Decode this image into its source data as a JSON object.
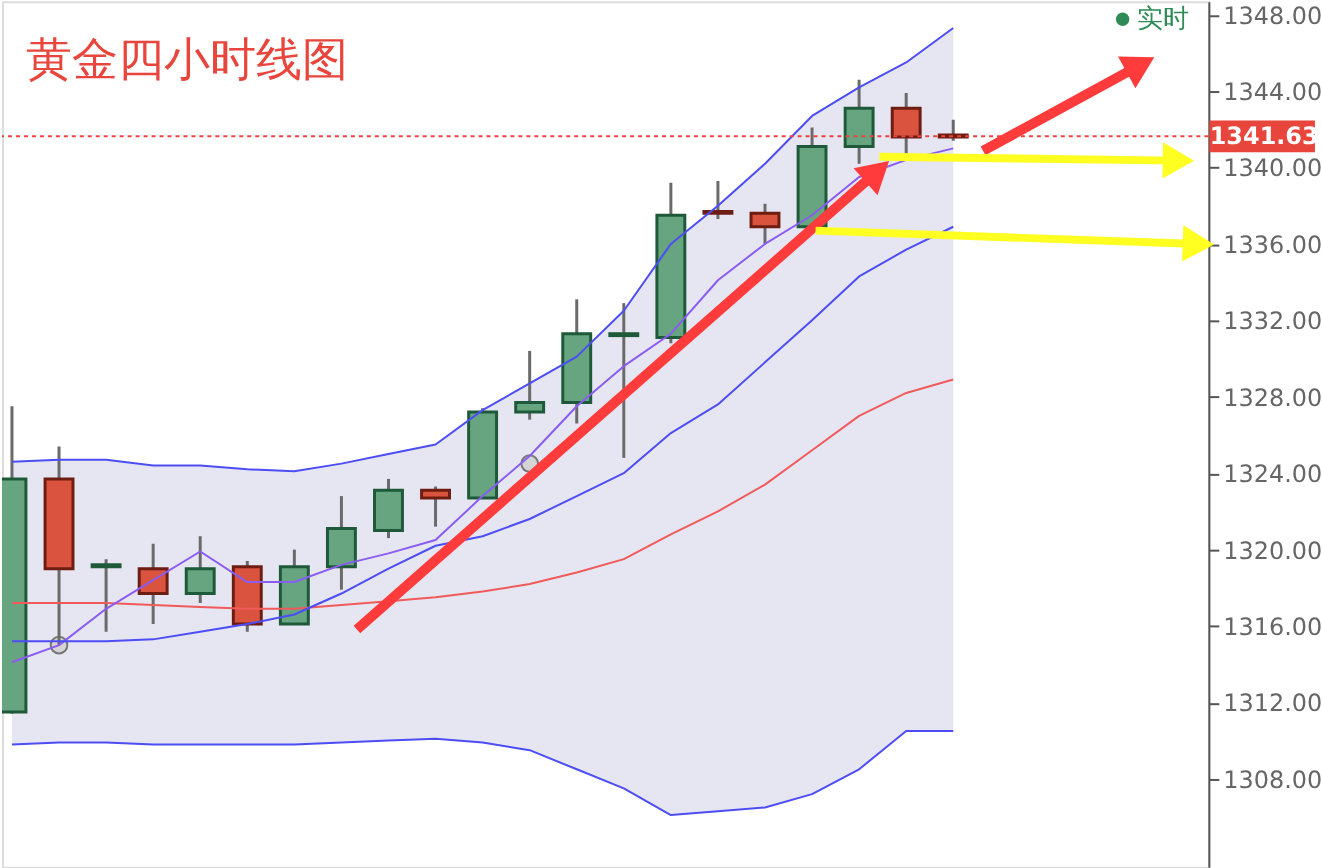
{
  "chart_data": {
    "type": "candlestick",
    "title": "黄金四小时线图",
    "categories": [
      null,
      null,
      null,
      null,
      null,
      null,
      null,
      null,
      null,
      null,
      null,
      null,
      null,
      null,
      null,
      null,
      null,
      null,
      null,
      null,
      null
    ],
    "ohlc": [
      [
        1311.5,
        1327.5,
        1311.4,
        1323.7
      ],
      [
        1323.7,
        1325.4,
        1315.0,
        1319.0
      ],
      [
        1319.1,
        1319.5,
        1315.7,
        1319.2
      ],
      [
        1319.0,
        1320.3,
        1316.1,
        1317.7
      ],
      [
        1317.7,
        1320.7,
        1317.2,
        1319.0
      ],
      [
        1319.1,
        1319.4,
        1315.7,
        1316.1
      ],
      [
        1316.1,
        1320.0,
        1316.1,
        1319.1
      ],
      [
        1319.1,
        1322.8,
        1317.9,
        1321.1
      ],
      [
        1321.0,
        1323.7,
        1320.6,
        1323.1
      ],
      [
        1323.1,
        1323.3,
        1321.2,
        1322.7
      ],
      [
        1322.7,
        1327.4,
        1322.7,
        1327.2
      ],
      [
        1327.2,
        1330.4,
        1326.8,
        1327.7
      ],
      [
        1327.7,
        1333.1,
        1326.6,
        1331.3
      ],
      [
        1331.2,
        1332.9,
        1324.8,
        1331.3
      ],
      [
        1331.1,
        1339.2,
        1330.8,
        1337.5
      ],
      [
        1337.7,
        1339.3,
        1337.3,
        1337.6
      ],
      [
        1337.6,
        1338.1,
        1336.0,
        1336.9
      ],
      [
        1336.9,
        1342.1,
        1336.9,
        1341.1
      ],
      [
        1341.1,
        1344.6,
        1340.2,
        1343.1
      ],
      [
        1343.1,
        1343.9,
        1340.6,
        1341.6
      ],
      [
        1341.7,
        1342.5,
        1341.4,
        1341.6
      ]
    ],
    "series": [
      {
        "type": "line",
        "color": "#f05a5a",
        "values": [
          1317.2,
          1317.2,
          1317.2,
          1317.1,
          1317.0,
          1316.9,
          1316.9,
          1317.1,
          1317.3,
          1317.5,
          1317.8,
          1318.2,
          1318.8,
          1319.5,
          1320.8,
          1322.0,
          1323.4,
          1325.2,
          1327.0,
          1328.2,
          1328.9
        ],
        "lower": [
          1309.8,
          1309.9,
          1309.9,
          1309.8,
          1309.8,
          1309.8,
          1309.8,
          1309.9,
          1310.0,
          1310.1,
          1309.9,
          1309.5,
          1308.5,
          1307.5,
          1306.1,
          1306.3,
          1306.5,
          1307.2,
          1308.5,
          1310.5,
          1310.5
        ],
        "upper": [
          1324.6,
          1324.7,
          1324.7,
          1324.4,
          1324.4,
          1324.2,
          1324.1,
          1324.5,
          1325.0,
          1325.5,
          1327.3,
          1328.7,
          1330.1,
          1332.5,
          1336.0,
          1338.0,
          1340.2,
          1342.7,
          1344.2,
          1345.5,
          1347.3
        ]
      },
      {
        "type": "line",
        "color": "#4d4df5",
        "values": [
          1309.8,
          1309.9,
          1309.9,
          1309.8,
          1309.8,
          1309.8,
          1309.8,
          1309.9,
          1310.0,
          1310.1,
          1309.9,
          1309.5,
          1308.5,
          1307.5,
          1306.1,
          1306.3,
          1306.5,
          1307.2,
          1308.5,
          1310.5,
          1310.5
        ]
      },
      {
        "type": "line",
        "color": "#4d4df5",
        "values": [
          1324.6,
          1324.7,
          1324.7,
          1324.4,
          1324.4,
          1324.2,
          1324.1,
          1324.5,
          1325.0,
          1325.5,
          1327.3,
          1328.7,
          1330.1,
          1332.5,
          1336.0,
          1338.0,
          1340.2,
          1342.7,
          1344.2,
          1345.5,
          1347.3
        ]
      },
      {
        "type": "line",
        "color": "#8a5cf0",
        "values": [
          1314.1,
          1315.0,
          1316.9,
          1318.4,
          1319.9,
          1318.3,
          1318.3,
          1319.2,
          1319.8,
          1320.5,
          1322.8,
          1324.9,
          1327.5,
          1329.6,
          1331.3,
          1334.1,
          1336.0,
          1337.5,
          1339.5,
          1340.4,
          1341.0
        ]
      },
      {
        "type": "line",
        "color": "#4d4df5",
        "values": [
          1315.2,
          1315.2,
          1315.2,
          1315.3,
          1315.7,
          1316.1,
          1316.6,
          1317.7,
          1319.0,
          1320.2,
          1320.7,
          1321.6,
          1322.8,
          1324.0,
          1326.1,
          1327.6,
          1329.8,
          1332.0,
          1334.3,
          1335.7,
          1336.9
        ]
      },
      {
        "type": "scatter",
        "color": "#d4d4d4",
        "marker": "circle",
        "values": [
          null,
          1315.0,
          null,
          null,
          null,
          null,
          null,
          null,
          null,
          null,
          null,
          1324.5,
          null,
          null,
          null,
          null,
          null,
          null,
          null,
          null,
          null
        ]
      }
    ],
    "ylim": [
      1303.4,
      1348.7
    ],
    "yticks": [
      {
        "value": 1308,
        "label": "1308.00"
      },
      {
        "value": 1312,
        "label": "1312.00"
      },
      {
        "value": 1316,
        "label": "1316.00"
      },
      {
        "value": 1320,
        "label": "1320.00"
      },
      {
        "value": 1324,
        "label": "1324.00"
      },
      {
        "value": 1328,
        "label": "1328.00"
      },
      {
        "value": 1332,
        "label": "1332.00"
      },
      {
        "value": 1336,
        "label": "1336.00"
      },
      {
        "value": 1340,
        "label": "1340.00"
      },
      {
        "value": 1344,
        "label": "1344.00"
      },
      {
        "value": 1348,
        "label": "1348.00"
      }
    ],
    "ref_lines": [
      {
        "axis": "y",
        "value": 1341.63,
        "label": "1341.63",
        "color": "#e8453c",
        "line_style": "dotted"
      }
    ],
    "annotations": [
      "实时"
    ],
    "tick_labels": "y",
    "grid": false,
    "line_style": "solid"
  }
}
